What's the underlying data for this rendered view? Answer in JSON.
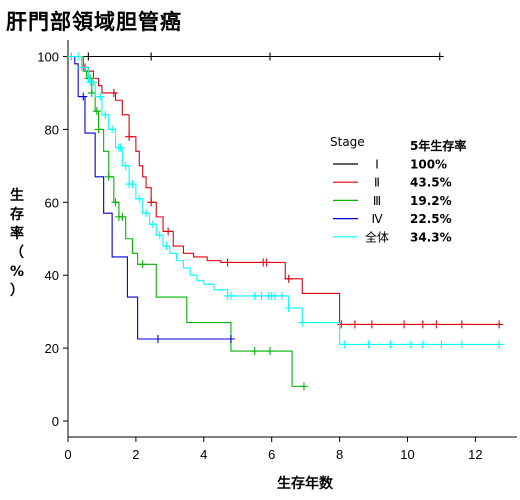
{
  "chart_data": {
    "type": "line",
    "title": "肝門部領域胆管癌",
    "xlabel": "生存年数",
    "ylabel_chars": [
      "生",
      "存",
      "率",
      "（",
      "%",
      "）"
    ],
    "xlim": [
      0,
      13
    ],
    "ylim": [
      0,
      100
    ],
    "x_ticks": [
      0,
      2,
      4,
      6,
      8,
      10,
      12
    ],
    "y_ticks": [
      0,
      20,
      40,
      60,
      80,
      100
    ],
    "grid": false,
    "legend_placement": "right-center",
    "legend_title": "Stage",
    "legend_rate_header": "5年生存率",
    "series": [
      {
        "name": "Ⅰ",
        "rate": "100%",
        "color": "#000000",
        "x": [
          0,
          11.0
        ],
        "y": [
          100,
          100
        ],
        "censored_x": [
          0.6,
          2.45,
          5.95,
          10.95
        ]
      },
      {
        "name": "Ⅱ",
        "rate": "43.5%",
        "color": "#e0000f",
        "x": [
          0,
          0.45,
          0.6,
          0.75,
          0.9,
          1.0,
          1.4,
          1.6,
          1.8,
          2.0,
          2.1,
          2.2,
          2.3,
          2.45,
          2.6,
          2.8,
          3.1,
          3.4,
          3.7,
          4.1,
          4.5,
          6.4,
          6.9,
          8.0,
          12.75
        ],
        "y": [
          100,
          97,
          96,
          94,
          92,
          90,
          88,
          84,
          78,
          74,
          70,
          67,
          64,
          60,
          56,
          52,
          48,
          46,
          45,
          44,
          43.5,
          39,
          35,
          26.5,
          26.5
        ],
        "censored_x": [
          0.5,
          0.6,
          1.35,
          1.8,
          2.45,
          2.95,
          4.7,
          5.75,
          5.85,
          6.5,
          8.05,
          8.45,
          8.95,
          9.9,
          10.45,
          10.85,
          11.6,
          12.7
        ]
      },
      {
        "name": "Ⅲ",
        "rate": "19.2%",
        "color": "#00b400",
        "x": [
          0,
          0.45,
          0.55,
          0.7,
          0.8,
          0.9,
          1.05,
          1.2,
          1.35,
          1.5,
          1.7,
          1.9,
          2.05,
          2.6,
          3.5,
          4.8,
          6.6,
          6.95
        ],
        "y": [
          100,
          96,
          94,
          90,
          85,
          80,
          74,
          67,
          60,
          56,
          50,
          46,
          43,
          34,
          27,
          19.2,
          9.5,
          9.5
        ],
        "censored_x": [
          0.6,
          0.65,
          0.7,
          0.85,
          0.9,
          1.2,
          1.4,
          1.5,
          1.6,
          2.2,
          5.5,
          5.95,
          6.95
        ]
      },
      {
        "name": "Ⅳ",
        "rate": "22.5%",
        "color": "#0000d2",
        "x": [
          0,
          0.2,
          0.3,
          0.5,
          0.8,
          1.05,
          1.3,
          1.75,
          2.05,
          4.8
        ],
        "y": [
          100,
          98,
          89,
          79,
          67,
          57,
          45,
          34,
          22.5,
          22.5
        ],
        "censored_x": [
          0.1,
          0.45,
          2.65,
          4.8
        ]
      },
      {
        "name": "全体",
        "rate": "34.3%",
        "color": "#00ffff",
        "x": [
          0,
          0.4,
          0.6,
          0.8,
          1.0,
          1.2,
          1.4,
          1.6,
          1.8,
          2.0,
          2.2,
          2.4,
          2.6,
          2.8,
          3.0,
          3.2,
          3.4,
          3.6,
          3.8,
          4.0,
          4.3,
          4.7,
          6.5,
          6.9,
          8.0,
          12.75
        ],
        "y": [
          100,
          97,
          93,
          89,
          84,
          80,
          75,
          70,
          65,
          61,
          57,
          54,
          51,
          48,
          46,
          44,
          42,
          40,
          38.5,
          37.5,
          36,
          34.3,
          31,
          27,
          21,
          21
        ],
        "censored_x": [
          0.1,
          0.3,
          0.4,
          0.65,
          0.75,
          0.95,
          1.1,
          1.3,
          1.5,
          1.55,
          1.7,
          1.8,
          1.9,
          2.1,
          2.3,
          2.5,
          2.7,
          2.9,
          4.7,
          4.8,
          5.5,
          5.7,
          5.9,
          6.0,
          6.1,
          6.3,
          6.5,
          6.9,
          8.15,
          8.85,
          9.5,
          10.1,
          10.45,
          11.0,
          11.6,
          12.7
        ]
      }
    ]
  }
}
